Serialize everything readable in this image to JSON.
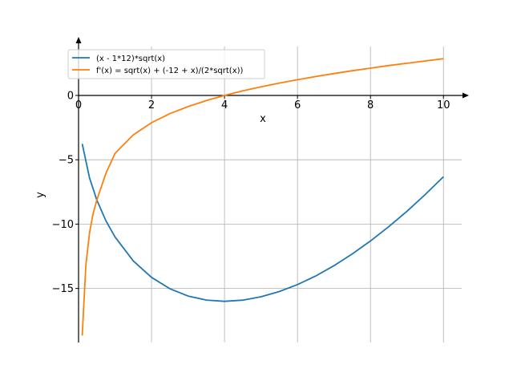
{
  "chart_data": {
    "type": "line",
    "title": "",
    "xlabel": "x",
    "ylabel": "y",
    "xlim": [
      0,
      10.5
    ],
    "ylim": [
      -19.2,
      3.8
    ],
    "x_ticks": [
      0,
      2,
      4,
      6,
      8,
      10
    ],
    "y_ticks": [
      -15,
      -10,
      -5,
      0
    ],
    "x_tick_labels": [
      "0",
      "2",
      "4",
      "6",
      "8",
      "10"
    ],
    "y_tick_labels": [
      "−15",
      "−10",
      "−5",
      "0"
    ],
    "grid": true,
    "legend": "top-left",
    "series": [
      {
        "name": "(x - 1*12)*sqrt(x)",
        "color": "#1f77b4",
        "x": [
          0.1,
          0.3,
          0.5,
          0.75,
          1,
          1.5,
          2,
          2.5,
          3,
          3.5,
          4,
          4.5,
          5,
          5.5,
          6,
          6.5,
          7,
          7.5,
          8,
          8.5,
          9,
          9.5,
          10
        ],
        "y": [
          -3.76,
          -6.41,
          -8.13,
          -9.74,
          -11.0,
          -12.86,
          -14.14,
          -15.02,
          -15.59,
          -15.9,
          -16.0,
          -15.91,
          -15.65,
          -15.24,
          -14.7,
          -14.03,
          -13.23,
          -12.32,
          -11.31,
          -10.2,
          -9.0,
          -7.7,
          -6.32
        ]
      },
      {
        "name": "f'(x) = sqrt(x) + (-12 + x)/(2*sqrt(x))",
        "color": "#ff7f0e",
        "x": [
          0.1,
          0.2,
          0.3,
          0.4,
          0.5,
          0.75,
          1,
          1.5,
          2,
          2.5,
          3,
          3.5,
          4,
          4.5,
          5,
          5.5,
          6,
          6.5,
          7,
          7.5,
          8,
          8.5,
          9,
          9.5,
          10
        ],
        "y": [
          -18.66,
          -13.2,
          -10.68,
          -9.17,
          -8.13,
          -6.06,
          -4.5,
          -3.06,
          -2.12,
          -1.42,
          -0.87,
          -0.4,
          0.0,
          0.35,
          0.67,
          0.96,
          1.22,
          1.47,
          1.7,
          1.92,
          2.12,
          2.32,
          2.5,
          2.68,
          2.85
        ]
      }
    ]
  }
}
